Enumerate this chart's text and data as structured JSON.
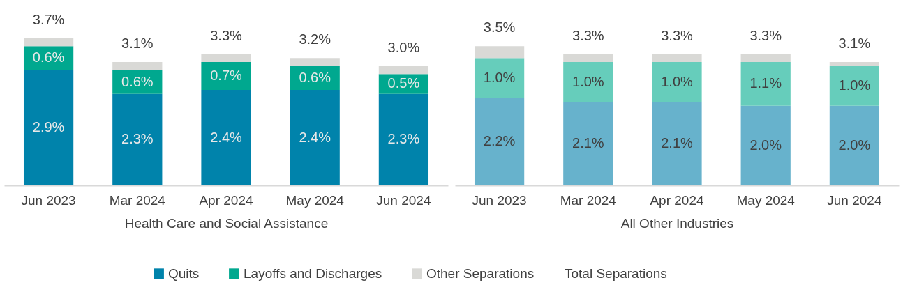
{
  "chart_data": [
    {
      "type": "bar",
      "stacked": true,
      "xlabel": "Health Care and Social Assistance",
      "legend": "bottom",
      "legend_title": "Total Separations",
      "categories": [
        "Jun 2023",
        "Mar 2024",
        "Apr 2024",
        "May 2024",
        "Jun 2024"
      ],
      "series": [
        {
          "name": "Quits",
          "color": "#0083ab",
          "values": [
            2.9,
            2.3,
            2.4,
            2.4,
            2.3
          ],
          "value_labels": [
            "2.9%",
            "2.3%",
            "2.4%",
            "2.4%",
            "2.3%"
          ]
        },
        {
          "name": "Layoffs and Discharges",
          "color": "#00a88f",
          "values": [
            0.6,
            0.6,
            0.7,
            0.6,
            0.5
          ],
          "value_labels": [
            "0.6%",
            "0.6%",
            "0.7%",
            "0.6%",
            "0.5%"
          ]
        },
        {
          "name": "Other Separations",
          "color": "#d9d9d6",
          "values": [
            0.2,
            0.2,
            0.2,
            0.2,
            0.2
          ]
        }
      ],
      "totals": [
        "3.7%",
        "3.1%",
        "3.3%",
        "3.2%",
        "3.0%"
      ]
    },
    {
      "type": "bar",
      "stacked": true,
      "xlabel": "All Other Industries",
      "categories": [
        "Jun 2023",
        "Mar 2024",
        "Apr 2024",
        "May 2024",
        "Jun 2024"
      ],
      "series": [
        {
          "color": "#67b2cc",
          "values": [
            2.2,
            2.1,
            2.1,
            2.0,
            2.0
          ],
          "value_labels": [
            "2.2%",
            "2.1%",
            "2.1%",
            "2.0%",
            "2.0%"
          ]
        },
        {
          "color": "#66cdbb",
          "values": [
            1.0,
            1.0,
            1.0,
            1.1,
            1.0
          ],
          "value_labels": [
            "1.0%",
            "1.0%",
            "1.0%",
            "1.1%",
            "1.0%"
          ]
        },
        {
          "color": "#d9d9d6",
          "values": [
            0.3,
            0.2,
            0.2,
            0.2,
            0.1
          ]
        }
      ],
      "totals": [
        "3.5%",
        "3.3%",
        "3.3%",
        "3.3%",
        "3.1%"
      ]
    }
  ]
}
